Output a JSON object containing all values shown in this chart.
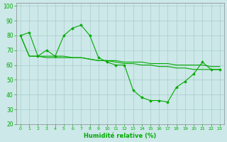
{
  "xlabel": "Humidité relative (%)",
  "bg_color": "#cce8e8",
  "grid_color": "#aacccc",
  "line_color": "#00aa00",
  "xlim": [
    -0.5,
    23.5
  ],
  "ylim": [
    20,
    102
  ],
  "yticks": [
    20,
    30,
    40,
    50,
    60,
    70,
    80,
    90,
    100
  ],
  "xticks": [
    0,
    1,
    2,
    3,
    4,
    5,
    6,
    7,
    8,
    9,
    10,
    11,
    12,
    13,
    14,
    15,
    16,
    17,
    18,
    19,
    20,
    21,
    22,
    23
  ],
  "series": [
    {
      "x": [
        0,
        1,
        2,
        3,
        4,
        5,
        6,
        7,
        8,
        9,
        10,
        11,
        12,
        13,
        14,
        15,
        16,
        17,
        18,
        19,
        20,
        21,
        22,
        23
      ],
      "y": [
        80,
        82,
        66,
        70,
        66,
        80,
        85,
        87,
        80,
        65,
        62,
        60,
        60,
        43,
        38,
        36,
        36,
        35,
        45,
        49,
        54,
        62,
        57,
        57
      ],
      "has_markers": true
    },
    {
      "x": [
        0,
        1,
        2,
        3,
        4,
        5,
        6,
        7,
        8,
        9,
        10,
        11,
        12,
        13,
        14,
        15,
        16,
        17,
        18,
        19,
        20,
        21,
        22,
        23
      ],
      "y": [
        80,
        66,
        66,
        66,
        66,
        66,
        65,
        65,
        64,
        63,
        63,
        63,
        62,
        62,
        62,
        61,
        61,
        61,
        60,
        60,
        60,
        60,
        59,
        59
      ],
      "has_markers": false
    },
    {
      "x": [
        0,
        1,
        2,
        3,
        4,
        5,
        6,
        7,
        8,
        9,
        10,
        11,
        12,
        13,
        14,
        15,
        16,
        17,
        18,
        19,
        20,
        21,
        22,
        23
      ],
      "y": [
        80,
        66,
        66,
        65,
        65,
        65,
        65,
        65,
        64,
        63,
        63,
        62,
        61,
        61,
        60,
        60,
        59,
        59,
        58,
        58,
        57,
        57,
        57,
        57
      ],
      "has_markers": false
    }
  ]
}
